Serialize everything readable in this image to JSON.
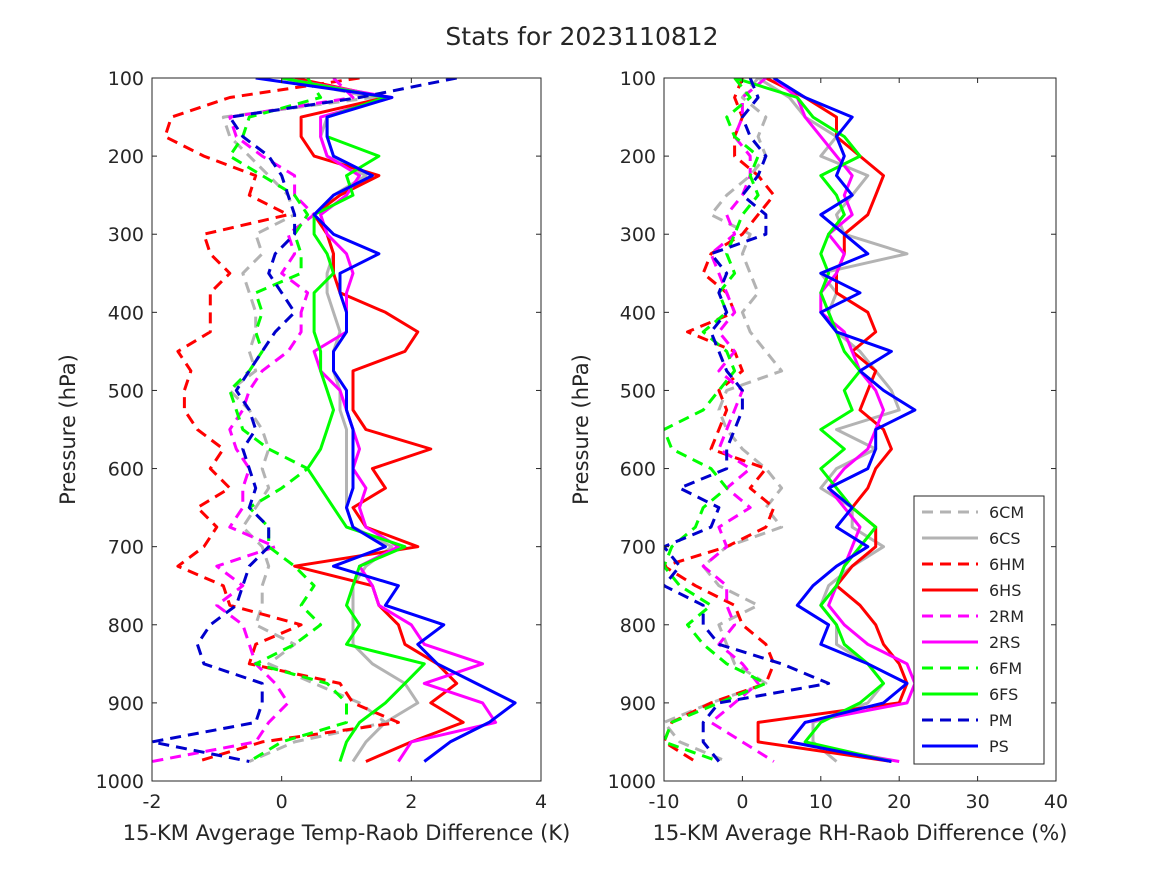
{
  "figure_title": "Stats for 2023110812",
  "legend_entries": [
    {
      "name": "6CM",
      "color": "#b3b3b3",
      "dashed": true
    },
    {
      "name": "6CS",
      "color": "#b3b3b3",
      "dashed": false
    },
    {
      "name": "6HM",
      "color": "#ff0000",
      "dashed": true
    },
    {
      "name": "6HS",
      "color": "#ff0000",
      "dashed": false
    },
    {
      "name": "2RM",
      "color": "#ff00ff",
      "dashed": true
    },
    {
      "name": "2RS",
      "color": "#ff00ff",
      "dashed": false
    },
    {
      "name": "6FM",
      "color": "#00ff00",
      "dashed": true
    },
    {
      "name": "6FS",
      "color": "#00ff00",
      "dashed": false
    },
    {
      "name": "PM",
      "color": "#0000cc",
      "dashed": true
    },
    {
      "name": "PS",
      "color": "#0000ff",
      "dashed": false
    }
  ],
  "chart_data": [
    {
      "type": "line",
      "xlabel": "15-KM Avgerage Temp-Raob Difference (K)",
      "ylabel": "Pressure (hPa)",
      "xlim": [
        -2,
        4
      ],
      "ylim": [
        100,
        1000
      ],
      "y_reversed": true,
      "grid": false,
      "legend": "none",
      "xticks": [
        "-2",
        "0",
        "2",
        "4"
      ],
      "yticks": [
        "100",
        "200",
        "300",
        "400",
        "500",
        "600",
        "700",
        "800",
        "900",
        "1000"
      ],
      "y": [
        100,
        125,
        150,
        175,
        200,
        225,
        250,
        275,
        300,
        325,
        350,
        375,
        400,
        425,
        450,
        475,
        500,
        525,
        550,
        575,
        600,
        625,
        650,
        675,
        700,
        725,
        750,
        775,
        800,
        825,
        850,
        875,
        900,
        925,
        950,
        975
      ],
      "series": [
        {
          "name": "6CM",
          "values": [
            0.0,
            1.4,
            -0.9,
            -0.8,
            -0.5,
            -0.2,
            0.1,
            0.2,
            -0.4,
            -0.3,
            -0.6,
            -0.5,
            -0.4,
            -0.4,
            -0.5,
            -0.4,
            -0.8,
            -0.5,
            -0.3,
            -0.2,
            -0.3,
            -0.2,
            -0.4,
            -0.6,
            -0.3,
            -0.2,
            -0.3,
            -0.3,
            -0.4,
            0.2,
            -0.2,
            0.5,
            1.2,
            1.6,
            0.2,
            -0.5
          ]
        },
        {
          "name": "6CS",
          "values": [
            0.0,
            1.5,
            0.7,
            0.6,
            0.7,
            1.3,
            0.8,
            0.6,
            0.7,
            0.8,
            0.7,
            0.7,
            0.8,
            0.9,
            0.8,
            0.8,
            0.9,
            0.9,
            1.0,
            1.0,
            1.0,
            1.0,
            1.0,
            1.1,
            1.7,
            1.3,
            1.1,
            1.1,
            1.1,
            1.1,
            1.4,
            1.9,
            2.1,
            1.6,
            1.3,
            1.1
          ]
        },
        {
          "name": "6HM",
          "values": [
            1.2,
            -0.8,
            -1.7,
            -1.8,
            -1.2,
            -0.4,
            -0.5,
            0.1,
            -1.2,
            -1.1,
            -0.8,
            -1.1,
            -1.1,
            -1.1,
            -1.6,
            -1.4,
            -1.5,
            -1.5,
            -1.3,
            -0.9,
            -1.1,
            -0.8,
            -1.3,
            -1.0,
            -1.2,
            -1.6,
            -0.9,
            -0.8,
            0.3,
            -0.4,
            -0.5,
            0.9,
            1.1,
            1.8,
            -0.3,
            -1.3
          ]
        },
        {
          "name": "6HS",
          "values": [
            0.2,
            1.6,
            0.3,
            0.3,
            0.5,
            1.5,
            0.9,
            0.5,
            0.7,
            0.8,
            0.8,
            0.9,
            1.6,
            2.1,
            1.9,
            1.1,
            1.1,
            1.1,
            1.3,
            2.3,
            1.4,
            1.6,
            1.1,
            1.3,
            2.1,
            0.2,
            1.4,
            1.5,
            1.8,
            1.9,
            2.4,
            2.7,
            2.3,
            2.8,
            2.0,
            1.3
          ]
        },
        {
          "name": "2RM",
          "values": [
            0.8,
            1.1,
            -0.8,
            -0.7,
            -0.3,
            0.2,
            0.2,
            0.5,
            0.1,
            0.2,
            0.0,
            0.4,
            0.3,
            0.3,
            0.1,
            -0.3,
            -0.5,
            -0.6,
            -0.8,
            -0.7,
            -0.5,
            -0.6,
            -0.6,
            -0.8,
            -0.1,
            -1.0,
            -0.6,
            -1.0,
            -0.6,
            -0.5,
            -0.4,
            -0.1,
            0.1,
            -0.2,
            -0.4,
            -2.0
          ]
        },
        {
          "name": "2RS",
          "values": [
            0.0,
            1.7,
            0.6,
            0.6,
            0.7,
            1.2,
            1.0,
            0.6,
            0.7,
            1.0,
            1.1,
            1.0,
            1.0,
            1.0,
            0.5,
            0.6,
            0.9,
            1.0,
            1.1,
            1.2,
            1.1,
            1.3,
            1.2,
            1.3,
            1.8,
            1.2,
            1.4,
            1.5,
            2.0,
            2.2,
            3.1,
            2.2,
            3.1,
            3.3,
            2.0,
            1.8
          ]
        },
        {
          "name": "6FM",
          "values": [
            0.4,
            0.6,
            -0.5,
            -0.6,
            -0.8,
            -0.3,
            0.2,
            0.4,
            0.2,
            0.3,
            0.3,
            -0.4,
            -0.3,
            -0.4,
            -0.3,
            -0.5,
            -0.8,
            -0.7,
            -0.6,
            -0.2,
            0.4,
            0.0,
            -0.5,
            -0.2,
            -0.2,
            0.2,
            0.5,
            0.3,
            0.6,
            0.2,
            -0.4,
            0.7,
            1.0,
            1.0,
            0.0,
            -0.5
          ]
        },
        {
          "name": "6FS",
          "values": [
            0.0,
            1.6,
            0.7,
            0.7,
            1.5,
            1.0,
            1.1,
            0.5,
            0.5,
            0.7,
            0.8,
            0.5,
            0.5,
            0.5,
            0.6,
            0.6,
            0.7,
            0.8,
            0.7,
            0.6,
            0.4,
            0.6,
            0.8,
            1.0,
            1.9,
            1.2,
            1.1,
            1.0,
            1.2,
            1.0,
            2.2,
            1.9,
            1.6,
            1.2,
            1.0,
            0.9
          ]
        },
        {
          "name": "PM",
          "values": [
            2.7,
            1.2,
            -0.8,
            -0.6,
            -0.2,
            0.0,
            0.1,
            0.2,
            0.2,
            -0.1,
            -0.2,
            0.0,
            0.2,
            -0.1,
            -0.3,
            -0.5,
            -0.7,
            -0.5,
            -0.4,
            -0.6,
            -0.5,
            -0.4,
            -0.5,
            -0.2,
            -0.2,
            -0.5,
            -0.6,
            -0.7,
            -1.1,
            -1.3,
            -1.2,
            -0.3,
            -0.3,
            -0.4,
            -2.0,
            -0.5
          ]
        },
        {
          "name": "PS",
          "values": [
            -0.4,
            1.7,
            0.7,
            0.7,
            0.8,
            1.4,
            0.8,
            0.5,
            0.8,
            1.5,
            0.9,
            0.9,
            1.0,
            1.0,
            0.8,
            0.8,
            1.0,
            1.0,
            1.1,
            1.1,
            1.1,
            1.1,
            1.0,
            1.1,
            1.6,
            0.8,
            1.8,
            1.6,
            2.5,
            2.1,
            2.4,
            3.0,
            3.6,
            3.2,
            2.6,
            2.2
          ]
        }
      ]
    },
    {
      "type": "line",
      "xlabel": "15-KM Average RH-Raob Difference (%)",
      "ylabel": "Pressure (hPa)",
      "xlim": [
        -10,
        40
      ],
      "ylim": [
        100,
        1000
      ],
      "y_reversed": true,
      "grid": false,
      "legend": "bottom-right",
      "xticks": [
        "-10",
        "0",
        "10",
        "20",
        "30",
        "40"
      ],
      "yticks": [
        "100",
        "200",
        "300",
        "400",
        "500",
        "600",
        "700",
        "800",
        "900",
        "1000"
      ],
      "y": [
        100,
        125,
        150,
        175,
        200,
        225,
        250,
        275,
        300,
        325,
        350,
        375,
        400,
        425,
        450,
        475,
        500,
        525,
        550,
        575,
        600,
        625,
        650,
        675,
        700,
        725,
        750,
        775,
        800,
        825,
        850,
        875,
        900,
        925,
        950,
        975
      ],
      "series": [
        {
          "name": "6CM",
          "values": [
            2,
            0,
            3,
            2,
            3,
            1,
            -2,
            -4,
            1,
            0,
            1,
            2,
            0,
            1,
            3,
            5,
            -2,
            -3,
            -2,
            0,
            3,
            5,
            3,
            5,
            -2,
            -5,
            -3,
            2,
            -3,
            -2,
            -1,
            3,
            -4,
            -10,
            -8,
            -2
          ]
        },
        {
          "name": "6CS",
          "values": [
            2,
            6,
            8,
            12,
            10,
            16,
            14,
            12,
            13,
            21,
            10,
            12,
            11,
            12,
            15,
            17,
            19,
            20,
            12,
            17,
            12,
            10,
            14,
            14,
            18,
            14,
            11,
            10,
            12,
            12,
            16,
            18,
            16,
            9,
            9,
            12
          ]
        },
        {
          "name": "6HM",
          "values": [
            0,
            -1,
            0,
            -1,
            -1,
            2,
            4,
            2,
            0,
            -4,
            -5,
            -2,
            -1,
            -7,
            -1,
            0,
            -3,
            -2,
            -3,
            -4,
            3,
            1,
            4,
            3,
            -2,
            -10,
            -6,
            -1,
            0,
            3,
            4,
            3,
            -4,
            -9,
            -10,
            -6
          ]
        },
        {
          "name": "6HS",
          "values": [
            3,
            8,
            12,
            12,
            15,
            18,
            17,
            16,
            13,
            13,
            12,
            12,
            16,
            17,
            14,
            17,
            16,
            15,
            18,
            19,
            17,
            16,
            14,
            17,
            17,
            14,
            12,
            15,
            17,
            18,
            20,
            21,
            20,
            2,
            2,
            19
          ]
        },
        {
          "name": "2RM",
          "values": [
            3,
            0,
            0,
            -1,
            1,
            1,
            0,
            -2,
            -1,
            -4,
            -3,
            -2,
            -1,
            -3,
            -1,
            -3,
            0,
            -1,
            -2,
            -3,
            1,
            -2,
            1,
            -3,
            -2,
            -5,
            -2,
            -2,
            -1,
            -3,
            0,
            2,
            -1,
            -4,
            0,
            4
          ]
        },
        {
          "name": "2RS",
          "values": [
            4,
            7,
            8,
            10,
            12,
            14,
            13,
            14,
            11,
            13,
            12,
            10,
            10,
            13,
            14,
            15,
            17,
            18,
            17,
            16,
            13,
            11,
            13,
            15,
            14,
            13,
            12,
            11,
            13,
            16,
            21,
            22,
            21,
            8,
            6,
            20
          ]
        },
        {
          "name": "6FM",
          "values": [
            -1,
            1,
            -2,
            -1,
            2,
            1,
            2,
            0,
            -1,
            -2,
            -1,
            -3,
            -2,
            -5,
            -2,
            -1,
            -3,
            -5,
            -10,
            -9,
            -4,
            -2,
            -5,
            -6,
            -9,
            -10,
            -8,
            -4,
            -7,
            -5,
            -2,
            3,
            -3,
            -9,
            -10,
            -3
          ]
        },
        {
          "name": "6FS",
          "values": [
            -1,
            7,
            9,
            13,
            15,
            10,
            12,
            13,
            11,
            10,
            11,
            10,
            11,
            12,
            13,
            15,
            13,
            14,
            10,
            13,
            10,
            12,
            14,
            17,
            15,
            13,
            12,
            10,
            12,
            13,
            16,
            18,
            15,
            10,
            8,
            19
          ]
        },
        {
          "name": "PM",
          "values": [
            1,
            2,
            0,
            1,
            3,
            2,
            0,
            3,
            3,
            -4,
            -2,
            -3,
            -2,
            -4,
            -3,
            -2,
            0,
            0,
            -1,
            -2,
            -2,
            -8,
            -3,
            -4,
            -10,
            -8,
            -10,
            -5,
            -5,
            -3,
            5,
            11,
            -3,
            -5,
            -5,
            -3
          ]
        },
        {
          "name": "PS",
          "values": [
            4,
            8,
            14,
            12,
            13,
            12,
            14,
            10,
            13,
            16,
            10,
            15,
            10,
            12,
            19,
            15,
            18,
            22,
            17,
            17,
            16,
            11,
            14,
            12,
            16,
            12,
            9,
            7,
            11,
            10,
            16,
            21,
            18,
            8,
            6,
            19
          ]
        }
      ]
    }
  ]
}
